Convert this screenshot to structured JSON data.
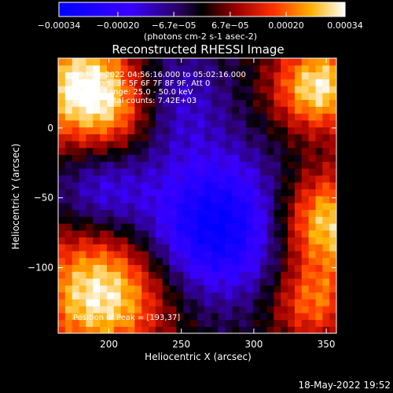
{
  "chart_data": {
    "type": "heatmap",
    "title": "Reconstructed RHESSI Image",
    "xlabel": "Heliocentric X (arcsec)",
    "ylabel": "Heliocentric Y (arcsec)",
    "xlim": [
      165,
      357
    ],
    "ylim": [
      -147,
      50
    ],
    "x_ticks": [
      200,
      250,
      300,
      350
    ],
    "y_ticks": [
      0,
      -50,
      -100
    ],
    "colorbar": {
      "range": [
        -0.00034,
        0.00034
      ],
      "tick_values": [
        -0.00034,
        -0.0002,
        -6.7e-05,
        6.7e-05,
        0.0002,
        0.00034
      ],
      "tick_labels": [
        "-0.00034",
        "-0.00020",
        "-6.7e-05",
        "6.7e-05",
        "0.00020",
        "0.00034"
      ],
      "unit_label": "(photons cm-2 s-1 asec-2)"
    },
    "annotations": {
      "line1": "18-May-2022 04:56:16.000 to 05:02:16.000",
      "line2": "Detectors: 3F 5F 6F 7F 8F 9F, Att 0",
      "line3": "Energy Range: 25.0 - 50.0 keV",
      "line4": "Clean    Total counts: 7.42E+03",
      "peak": "Position of Peak = [193,37]"
    },
    "sources": [
      {
        "x": 182,
        "y": 30,
        "sigma": 28,
        "amp": 1.0
      },
      {
        "x": 210,
        "y": 12,
        "sigma": 22,
        "amp": 0.45
      },
      {
        "x": 195,
        "y": -118,
        "sigma": 32,
        "amp": 1.0
      },
      {
        "x": 345,
        "y": 30,
        "sigma": 22,
        "amp": 0.95
      },
      {
        "x": 350,
        "y": -68,
        "sigma": 26,
        "amp": 0.95
      },
      {
        "x": 340,
        "y": -125,
        "sigma": 20,
        "amp": 0.6
      },
      {
        "x": 275,
        "y": -70,
        "sigma": 36,
        "amp": -1.0
      },
      {
        "x": 240,
        "y": 20,
        "sigma": 28,
        "amp": -0.5
      },
      {
        "x": 195,
        "y": -45,
        "sigma": 22,
        "amp": -0.45
      }
    ]
  },
  "footer": {
    "date": "18-May-2022 19:52"
  }
}
